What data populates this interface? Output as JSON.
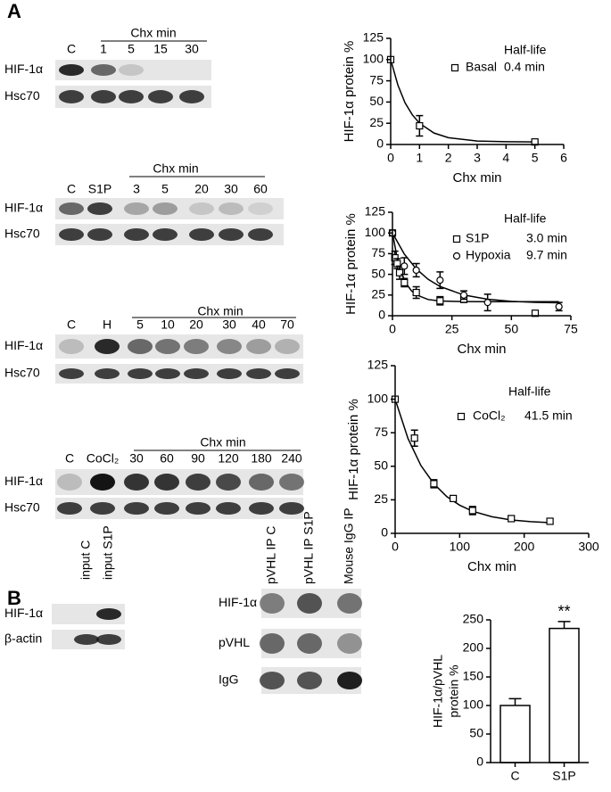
{
  "panel_labels": [
    "A",
    "B"
  ],
  "blots": [
    {
      "axis_label": "Chx min",
      "lanes": [
        "C",
        "1",
        "5",
        "15",
        "30"
      ],
      "rows": [
        "HIF-1α",
        "Hsc70"
      ]
    },
    {
      "axis_label": "Chx min",
      "lanes": [
        "C",
        "S1P",
        "3",
        "5",
        "20",
        "30",
        "60"
      ],
      "rows": [
        "HIF-1α",
        "Hsc70"
      ]
    },
    {
      "axis_label": "Chx min",
      "lanes": [
        "C",
        "H",
        "5",
        "10",
        "20",
        "30",
        "40",
        "70"
      ],
      "rows": [
        "HIF-1α",
        "Hsc70"
      ]
    },
    {
      "axis_label": "Chx min",
      "lanes": [
        "C",
        "CoCl₂",
        "30",
        "60",
        "90",
        "120",
        "180",
        "240"
      ],
      "rows": [
        "HIF-1α",
        "Hsc70"
      ]
    }
  ],
  "blots_b": [
    {
      "lanes": [
        "input C",
        "input S1P"
      ],
      "rows": [
        "HIF-1α",
        "β-actin"
      ]
    },
    {
      "lanes": [
        "pVHL IP C",
        "pVHL IP S1P",
        "Mouse IgG IP"
      ],
      "rows": [
        "HIF-1α",
        "pVHL",
        "IgG"
      ]
    }
  ],
  "chart_data": [
    {
      "type": "scatter",
      "xlabel": "Chx min",
      "ylabel": "HIF-1α protein %",
      "xlim": [
        0,
        6
      ],
      "ylim": [
        0,
        125
      ],
      "xticks": [
        0,
        1,
        2,
        3,
        4,
        5,
        6
      ],
      "yticks": [
        0,
        25,
        50,
        75,
        100,
        125
      ],
      "legend_title": "Half-life",
      "series": [
        {
          "name": "Basal",
          "marker": "square",
          "half_life": "0.4 min",
          "x": [
            0,
            1,
            5
          ],
          "values": [
            100,
            22,
            3
          ],
          "errors": [
            0,
            12,
            1
          ],
          "fit_x": [
            0,
            0.25,
            0.5,
            0.75,
            1,
            1.5,
            2,
            3,
            4,
            5
          ],
          "fit_values": [
            100,
            70,
            49,
            35,
            25,
            13.5,
            8,
            4.1,
            3.3,
            3
          ]
        }
      ]
    },
    {
      "type": "scatter",
      "xlabel": "Chx min",
      "ylabel": "HIF-1α protein %",
      "xlim": [
        0,
        75
      ],
      "ylim": [
        0,
        125
      ],
      "xticks": [
        0,
        25,
        50,
        75
      ],
      "yticks": [
        0,
        25,
        50,
        75,
        100,
        125
      ],
      "legend_title": "Half-life",
      "series": [
        {
          "name": "S1P",
          "marker": "square",
          "half_life": "3.0 min",
          "x": [
            0,
            1,
            2,
            3,
            5,
            10,
            20,
            30,
            60
          ],
          "values": [
            100,
            70,
            63,
            52,
            40,
            28,
            18,
            20,
            3
          ],
          "errors": [
            0,
            8,
            6,
            8,
            5,
            7,
            5,
            4,
            1
          ],
          "fit_x": [
            0,
            2,
            4,
            6,
            8,
            10,
            15,
            20,
            30,
            40,
            50,
            60,
            70
          ],
          "fit_values": [
            100,
            69.4,
            50,
            38,
            30,
            25.3,
            19.6,
            17.8,
            17.1,
            17,
            17,
            17,
            17
          ]
        },
        {
          "name": "Hypoxia",
          "marker": "circle",
          "half_life": "9.7 min",
          "x": [
            0,
            5,
            10,
            20,
            30,
            40,
            70
          ],
          "values": [
            100,
            60,
            55,
            43,
            25,
            16,
            11
          ],
          "errors": [
            0,
            10,
            8,
            10,
            5,
            10,
            5
          ],
          "fit_x": [
            0,
            5,
            10,
            15,
            20,
            30,
            40,
            50,
            60,
            70
          ],
          "fit_values": [
            100,
            74.4,
            56.6,
            44,
            35.3,
            25,
            19.9,
            17.4,
            16.2,
            15.6
          ]
        }
      ]
    },
    {
      "type": "scatter",
      "xlabel": "Chx min",
      "ylabel": "HIF-1α protein %",
      "xlim": [
        0,
        300
      ],
      "ylim": [
        0,
        125
      ],
      "xticks": [
        0,
        100,
        200,
        300
      ],
      "yticks": [
        0,
        25,
        50,
        75,
        100,
        125
      ],
      "legend_title": "Half-life",
      "series": [
        {
          "name": "CoCl₂",
          "marker": "square",
          "half_life": "41.5 min",
          "x": [
            0,
            30,
            60,
            90,
            120,
            180,
            240
          ],
          "values": [
            100,
            71,
            37,
            26,
            17,
            11,
            9
          ],
          "errors": [
            0,
            6,
            3,
            2,
            3,
            2,
            2
          ],
          "fit_x": [
            0,
            20,
            40,
            60,
            80,
            100,
            120,
            150,
            180,
            210,
            240
          ],
          "fit_values": [
            100,
            70.6,
            50.5,
            37,
            27.4,
            21,
            16.5,
            12.4,
            10,
            8.7,
            8
          ]
        }
      ]
    },
    {
      "type": "bar",
      "ylabel": [
        "HIF-1α/pVHL",
        "protein %"
      ],
      "categories": [
        "C",
        "S1P"
      ],
      "values": [
        100,
        235
      ],
      "errors": [
        12,
        12
      ],
      "ylim": [
        0,
        250
      ],
      "yticks": [
        0,
        50,
        100,
        150,
        200,
        250
      ],
      "annotation": "**",
      "color": "#ffffff"
    }
  ]
}
